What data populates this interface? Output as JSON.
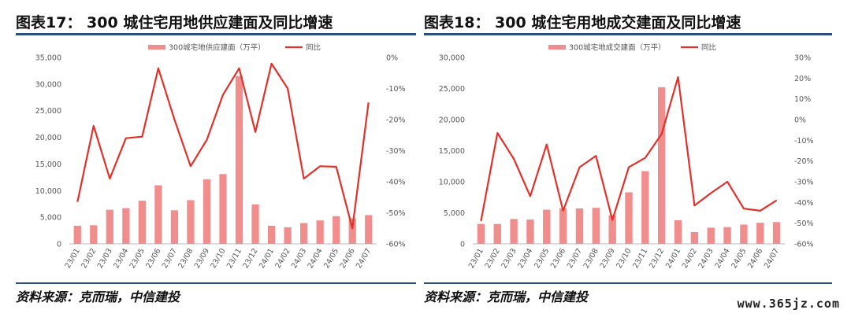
{
  "left": {
    "title": "图表17： 300 城住宅用地供应建面及同比增速",
    "source": "资料来源：克而瑞，中信建投"
  },
  "right": {
    "title": "图表18： 300 城住宅用地成交建面及同比增速",
    "source": "资料来源：克而瑞，中信建投"
  },
  "watermark": "www.365jz.com",
  "chart_data": [
    {
      "type": "bar+line",
      "title": "",
      "categories": [
        "23/01",
        "23/02",
        "23/03",
        "23/04",
        "23/05",
        "23/06",
        "23/07",
        "23/08",
        "23/09",
        "23/10",
        "23/11",
        "23/12",
        "24/01",
        "24/02",
        "24/03",
        "24/04",
        "24/05",
        "24/06",
        "24/07"
      ],
      "series": [
        {
          "name": "300城宅地供应建面（万平）",
          "kind": "bar",
          "axis": "left",
          "color": "#f08d8d",
          "values": [
            3400,
            3500,
            6400,
            6700,
            8100,
            11000,
            6300,
            8200,
            12100,
            13100,
            31500,
            7400,
            3400,
            3100,
            3900,
            4400,
            5200,
            4800,
            5400
          ]
        },
        {
          "name": "同比",
          "kind": "line",
          "axis": "right",
          "color": "#e0312a",
          "values": [
            -46.5,
            -22,
            -39,
            -26,
            -25.5,
            -3.5,
            -20,
            -35,
            -26.5,
            -12,
            -3.5,
            -24,
            -2,
            -10,
            -39,
            -35,
            -35.2,
            -55,
            -14.5
          ]
        }
      ],
      "ylim_left": [
        0,
        35000
      ],
      "yticks_left": [
        "0",
        "5,000",
        "10,000",
        "15,000",
        "20,000",
        "25,000",
        "30,000",
        "35,000"
      ],
      "ylim_right": [
        -60,
        0
      ],
      "yticks_right": [
        "-60%",
        "-50%",
        "-40%",
        "-30%",
        "-20%",
        "-10%",
        "0%"
      ],
      "grid": false,
      "legend": "top-center"
    },
    {
      "type": "bar+line",
      "title": "",
      "categories": [
        "23/01",
        "23/02",
        "23/03",
        "23/04",
        "23/05",
        "23/06",
        "23/07",
        "23/08",
        "23/09",
        "23/10",
        "23/11",
        "23/12",
        "24/01",
        "24/02",
        "24/03",
        "24/04",
        "24/05",
        "24/06",
        "24/07"
      ],
      "series": [
        {
          "name": "300城宅地成交建面（万平）",
          "kind": "bar",
          "axis": "left",
          "color": "#f08d8d",
          "values": [
            3200,
            3200,
            4000,
            3900,
            5500,
            5700,
            5700,
            5800,
            4600,
            8300,
            11700,
            25200,
            3800,
            1900,
            2600,
            2700,
            3100,
            3400,
            3500
          ]
        },
        {
          "name": "同比",
          "kind": "line",
          "axis": "right",
          "color": "#e0312a",
          "values": [
            -49,
            -6.5,
            -19,
            -37,
            -12,
            -44,
            -23,
            -17.5,
            -48.5,
            -23,
            -18.5,
            -7,
            20.5,
            -41.5,
            -35.5,
            -30,
            -43,
            -44,
            -39
          ]
        }
      ],
      "ylim_left": [
        0,
        30000
      ],
      "yticks_left": [
        "0",
        "5,000",
        "10,000",
        "15,000",
        "20,000",
        "25,000",
        "30,000"
      ],
      "ylim_right": [
        -60,
        30
      ],
      "yticks_right": [
        "-60%",
        "-50%",
        "-40%",
        "-30%",
        "-20%",
        "-10%",
        "0%",
        "10%",
        "20%",
        "30%"
      ],
      "grid": false,
      "legend": "top-center"
    }
  ]
}
